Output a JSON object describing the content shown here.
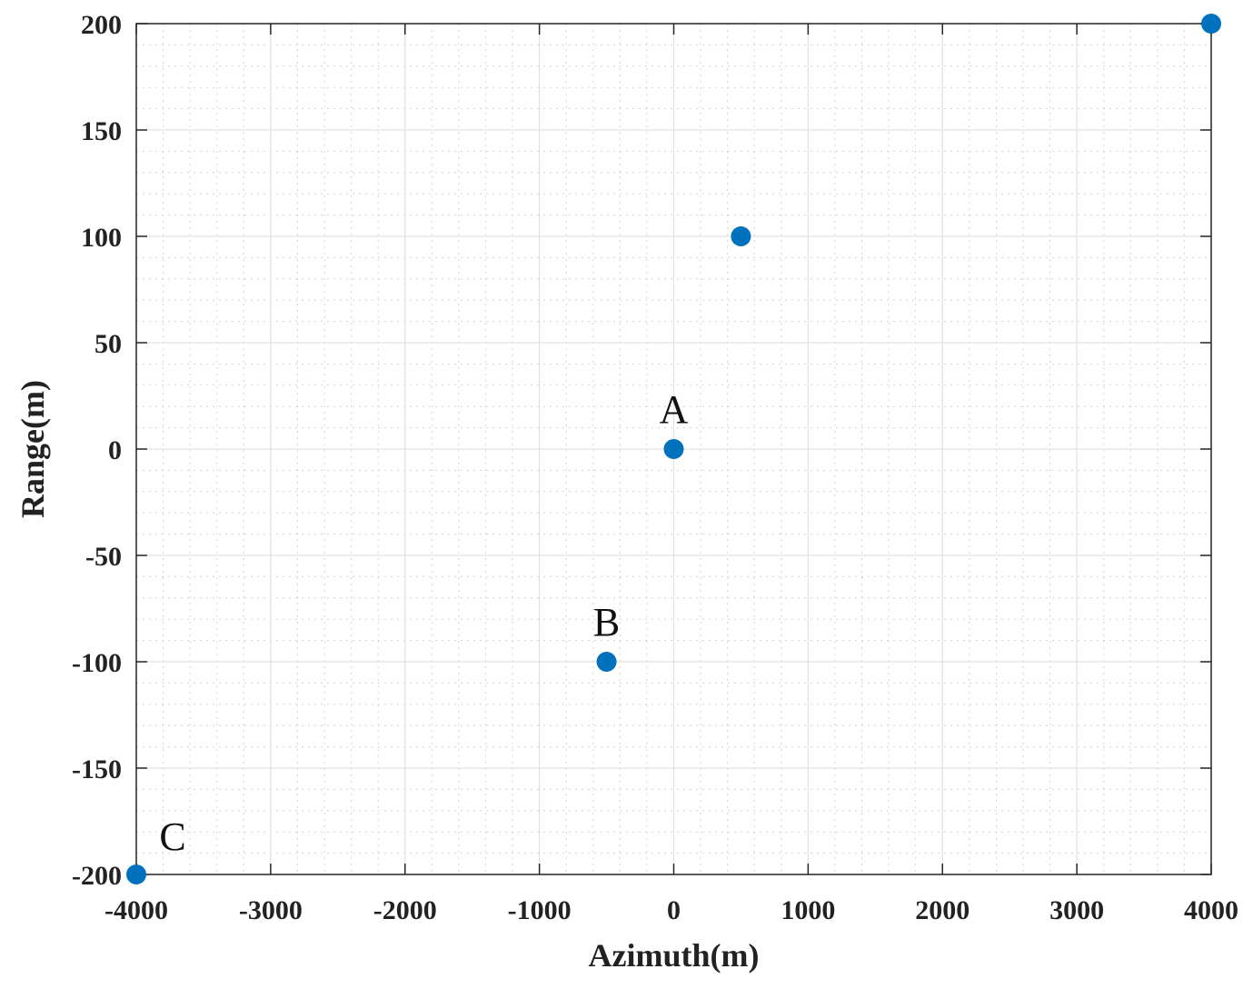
{
  "chart_data": {
    "type": "scatter",
    "xlabel": "Azimuth(m)",
    "ylabel": "Range(m)",
    "xlim": [
      -4000,
      4000
    ],
    "ylim": [
      -200,
      200
    ],
    "x_ticks": [
      -4000,
      -3000,
      -2000,
      -1000,
      0,
      1000,
      2000,
      3000,
      4000
    ],
    "y_ticks": [
      -200,
      -150,
      -100,
      -50,
      0,
      50,
      100,
      150,
      200
    ],
    "grid": true,
    "minor_grid": true,
    "marker_color": "#0072BD",
    "points": [
      {
        "x": 4000,
        "y": 200,
        "label": ""
      },
      {
        "x": 500,
        "y": 100,
        "label": ""
      },
      {
        "x": 0,
        "y": 0,
        "label": "A"
      },
      {
        "x": -500,
        "y": -100,
        "label": "B"
      },
      {
        "x": -4000,
        "y": -200,
        "label": "C"
      }
    ]
  }
}
